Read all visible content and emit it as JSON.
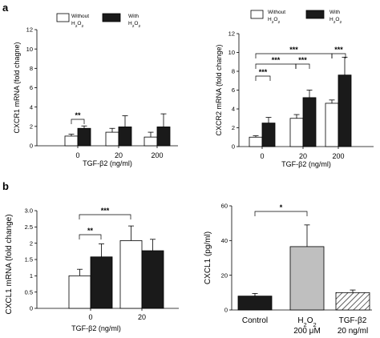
{
  "panel_labels": [
    "a",
    "b"
  ],
  "legend": {
    "without": [
      "Without",
      "H",
      "2",
      "O",
      "2"
    ],
    "with": [
      "With",
      "H",
      "2",
      "O",
      "2"
    ]
  },
  "colors": {
    "without": "#ffffff",
    "with": "#1a1a1a",
    "control": "#1a1a1a",
    "h2o2": "#bfbfbf",
    "tgf": "#ffffff"
  },
  "chart_data": [
    {
      "id": "cxcr1",
      "type": "bar",
      "ylabel": "CXCR1 mRNA (fold chagne)",
      "xlabel": "TGF-β2 (ng/ml)",
      "categories": [
        "0",
        "20",
        "200"
      ],
      "ylim": [
        0,
        12
      ],
      "yticks": [
        0,
        2,
        4,
        6,
        8,
        10,
        12
      ],
      "series": [
        {
          "name": "Without H2O2",
          "values": [
            1.0,
            1.4,
            0.9
          ],
          "errors": [
            0.2,
            0.4,
            0.5
          ]
        },
        {
          "name": "With H2O2",
          "values": [
            1.8,
            1.95,
            1.95
          ],
          "errors": [
            0.25,
            1.15,
            1.35
          ]
        }
      ],
      "significance": [
        {
          "label": "**"
        }
      ]
    },
    {
      "id": "cxcr2",
      "type": "bar",
      "ylabel": "CXCR2 mRNA (fold change)",
      "xlabel": "TGF-β2 (ng/ml)",
      "categories": [
        "0",
        "20",
        "200"
      ],
      "ylim": [
        0,
        12
      ],
      "yticks": [
        0,
        2,
        4,
        6,
        8,
        10,
        12
      ],
      "series": [
        {
          "name": "Without H2O2",
          "values": [
            1.0,
            3.0,
            4.6
          ],
          "errors": [
            0.15,
            0.4,
            0.35
          ]
        },
        {
          "name": "With H2O2",
          "values": [
            2.5,
            5.2,
            7.6
          ],
          "errors": [
            0.6,
            0.8,
            1.9
          ]
        }
      ],
      "significance": [
        {
          "label": "***"
        },
        {
          "label": "***"
        },
        {
          "label": "***"
        },
        {
          "label": "***"
        },
        {
          "label": "***"
        }
      ]
    },
    {
      "id": "cxcl1_mrna",
      "type": "bar",
      "ylabel": "CXCL1 mRNA (fold change)",
      "xlabel": "TGF-β2 (ng/ml)",
      "categories": [
        "0",
        "20"
      ],
      "ylim": [
        0,
        3.0
      ],
      "yticks": [
        "0",
        "0.5",
        "1",
        "1.5",
        "2",
        "2.5",
        "3.0"
      ],
      "series": [
        {
          "name": "Without H2O2",
          "values": [
            1.0,
            2.08
          ],
          "errors": [
            0.2,
            0.45
          ]
        },
        {
          "name": "With H2O2",
          "values": [
            1.58,
            1.77
          ],
          "errors": [
            0.4,
            0.35
          ]
        }
      ],
      "significance": [
        {
          "label": "**"
        },
        {
          "label": "***"
        }
      ]
    },
    {
      "id": "cxcl1_protein",
      "type": "bar",
      "ylabel": "CXCL1 (pg/ml)",
      "categories": [
        [
          "Control"
        ],
        [
          "H",
          "2",
          "O",
          "2",
          " 200 μM"
        ],
        [
          "TGF-β2",
          "20 ng/ml"
        ]
      ],
      "ylim": [
        0,
        60
      ],
      "yticks": [
        0,
        20,
        40,
        60
      ],
      "values": [
        8,
        36.5,
        10
      ],
      "errors": [
        1.5,
        12.5,
        1.5
      ],
      "significance": [
        {
          "label": "*"
        }
      ]
    }
  ]
}
